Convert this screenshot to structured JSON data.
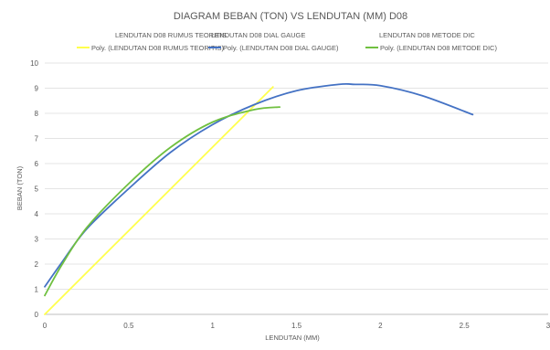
{
  "chart_data": {
    "type": "line",
    "title": "DIAGRAM BEBAN (TON) VS LENDUTAN (MM) D08",
    "xlabel": "LENDUTAN (MM)",
    "ylabel": "BEBAN (TON)",
    "xlim": [
      0,
      3
    ],
    "ylim": [
      0,
      10
    ],
    "x_ticks": [
      "0",
      "0.5",
      "1",
      "1.5",
      "2",
      "2.5",
      "3"
    ],
    "y_ticks": [
      "0",
      "1",
      "2",
      "3",
      "4",
      "5",
      "6",
      "7",
      "8",
      "9",
      "10"
    ],
    "grid": "horizontal",
    "legend_position": "top",
    "legend": [
      "LENDUTAN D08 RUMUS TEORITIS",
      "LENDUTAN D08 DIAL GAUGE",
      "LENDUTAN D08 METODE DIC",
      "Poly. (LENDUTAN D08 RUMUS TEORITIS)",
      "Poly. (LENDUTAN D08 DIAL GAUGE)",
      "Poly. (LENDUTAN D08 METODE DIC)"
    ],
    "series": [
      {
        "name": "Poly. (LENDUTAN D08 RUMUS TEORITIS)",
        "color": "#ffff4d",
        "x": [
          0,
          1.36
        ],
        "y": [
          0,
          9.05
        ]
      },
      {
        "name": "Poly. (LENDUTAN D08 DIAL GAUGE)",
        "color": "#4472c4",
        "x": [
          0,
          0.1,
          0.25,
          0.5,
          0.75,
          1.0,
          1.25,
          1.5,
          1.75,
          1.85,
          2.0,
          2.25,
          2.55
        ],
        "y": [
          1.1,
          2.05,
          3.4,
          5.0,
          6.45,
          7.55,
          8.35,
          8.9,
          9.15,
          9.15,
          9.1,
          8.7,
          7.95
        ]
      },
      {
        "name": "Poly. (LENDUTAN D08 METODE DIC)",
        "color": "#70c040",
        "x": [
          0,
          0.1,
          0.25,
          0.5,
          0.75,
          1.0,
          1.25,
          1.4
        ],
        "y": [
          0.75,
          1.95,
          3.45,
          5.2,
          6.65,
          7.65,
          8.15,
          8.25
        ]
      }
    ]
  }
}
